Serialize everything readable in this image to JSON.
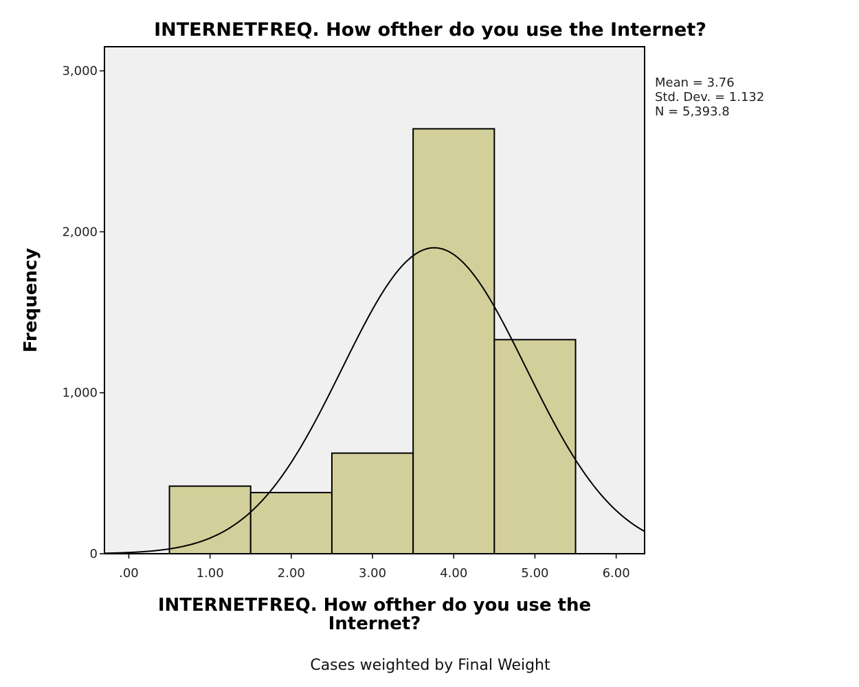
{
  "chart_data": {
    "type": "bar",
    "title": "INTERNETFREQ. How ofther do you use the Internet?",
    "xlabel_lines": [
      "INTERNETFREQ. How ofther do you use the",
      "Internet?"
    ],
    "ylabel": "Frequency",
    "x_tick_labels": [
      ".00",
      "1.00",
      "2.00",
      "3.00",
      "4.00",
      "5.00",
      "6.00"
    ],
    "x_ticks": [
      0,
      1,
      2,
      3,
      4,
      5,
      6
    ],
    "y_tick_labels": [
      "0",
      "1,000",
      "2,000",
      "3,000"
    ],
    "y_ticks": [
      0,
      1000,
      2000,
      3000
    ],
    "xlim": [
      -0.3,
      6.35
    ],
    "ylim": [
      0,
      3150
    ],
    "bar_width": 1,
    "x": [
      1,
      2,
      3,
      4,
      5
    ],
    "values": [
      420,
      380,
      625,
      2640,
      1330
    ],
    "normal_curve": {
      "mean": 3.76,
      "sd": 1.132,
      "n": 5393.8,
      "bin_width": 1
    },
    "stats": [
      "Mean = 3.76",
      "Std. Dev. = 1.132",
      "N = 5,393.8"
    ],
    "footnote": "Cases weighted by Final Weight",
    "colors": {
      "bar_fill": "#d3cf9a",
      "plot_background": "#f0f0f0",
      "line": "#000000"
    }
  }
}
